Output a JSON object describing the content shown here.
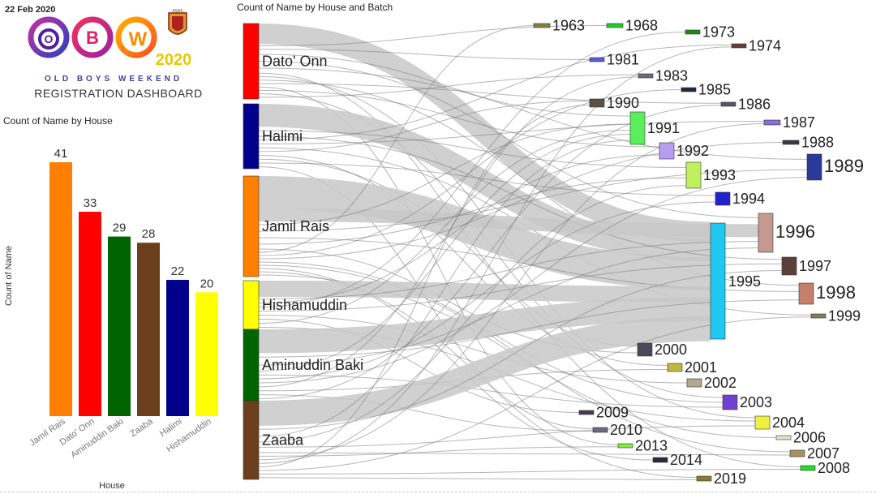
{
  "header": {
    "date": "22 Feb 2020",
    "logo": {
      "text": "OBW",
      "year": "2020",
      "tagline": "OLD BOYS WEEKEND",
      "badge": "ASAS"
    },
    "subtitle": "REGISTRATION DASHBOARD"
  },
  "bar_panel": {
    "title": "Count of Name by House"
  },
  "sankey_panel": {
    "title": "Count of Name by House and Batch"
  },
  "chart_data": [
    {
      "type": "bar",
      "title": "Count of Name by House",
      "xlabel": "House",
      "ylabel": "Count of Name",
      "categories": [
        "Jamil Rais",
        "Dato' Onn",
        "Aminuddin Baki",
        "Zaaba",
        "Halimi",
        "Hishamuddin"
      ],
      "values": [
        41,
        33,
        29,
        28,
        22,
        20
      ],
      "colors": [
        "#ff8000",
        "#ff0000",
        "#006400",
        "#6b3f1b",
        "#00008b",
        "#ffff00"
      ],
      "ylim": [
        0,
        41
      ],
      "grid": false
    },
    {
      "type": "sankey",
      "title": "Count of Name by House and Batch",
      "sources": [
        {
          "name": "Dato' Onn",
          "color": "#ff0000"
        },
        {
          "name": "Halimi",
          "color": "#00008b"
        },
        {
          "name": "Jamil Rais",
          "color": "#ff8000"
        },
        {
          "name": "Hishamuddin",
          "color": "#ffff00"
        },
        {
          "name": "Aminuddin Baki",
          "color": "#006400"
        },
        {
          "name": "Zaaba",
          "color": "#6b3f1b"
        }
      ],
      "targets": [
        {
          "name": "1963",
          "color": "#8b7d3a"
        },
        {
          "name": "1968",
          "color": "#22cc22"
        },
        {
          "name": "1973",
          "color": "#1a8a1a"
        },
        {
          "name": "1974",
          "color": "#6b3a3a"
        },
        {
          "name": "1981",
          "color": "#5a5ad6"
        },
        {
          "name": "1983",
          "color": "#6b6b80"
        },
        {
          "name": "1985",
          "color": "#1e2a3a"
        },
        {
          "name": "1986",
          "color": "#555566"
        },
        {
          "name": "1987",
          "color": "#8870d0"
        },
        {
          "name": "1988",
          "color": "#3a3a44"
        },
        {
          "name": "1989",
          "color": "#2a3a9a"
        },
        {
          "name": "1990",
          "color": "#5a5044"
        },
        {
          "name": "1991",
          "color": "#5aee5a"
        },
        {
          "name": "1992",
          "color": "#b89cf0"
        },
        {
          "name": "1993",
          "color": "#c0f060"
        },
        {
          "name": "1994",
          "color": "#2222cc"
        },
        {
          "name": "1995",
          "color": "#1ec8f0"
        },
        {
          "name": "1996",
          "color": "#c49a90"
        },
        {
          "name": "1997",
          "color": "#5a4038"
        },
        {
          "name": "1998",
          "color": "#c4806a"
        },
        {
          "name": "1999",
          "color": "#808060"
        },
        {
          "name": "2000",
          "color": "#4a4a5a"
        },
        {
          "name": "2001",
          "color": "#c0b840"
        },
        {
          "name": "2002",
          "color": "#b0a890"
        },
        {
          "name": "2003",
          "color": "#7040d0"
        },
        {
          "name": "2004",
          "color": "#f0f040"
        },
        {
          "name": "2006",
          "color": "#e8e0c0"
        },
        {
          "name": "2007",
          "color": "#a89060"
        },
        {
          "name": "2008",
          "color": "#22dd22"
        },
        {
          "name": "2009",
          "color": "#4a3a50"
        },
        {
          "name": "2010",
          "color": "#6a6a80"
        },
        {
          "name": "2013",
          "color": "#80ee40"
        },
        {
          "name": "2014",
          "color": "#2a2a3a"
        },
        {
          "name": "2019",
          "color": "#8a7a30"
        }
      ]
    }
  ]
}
